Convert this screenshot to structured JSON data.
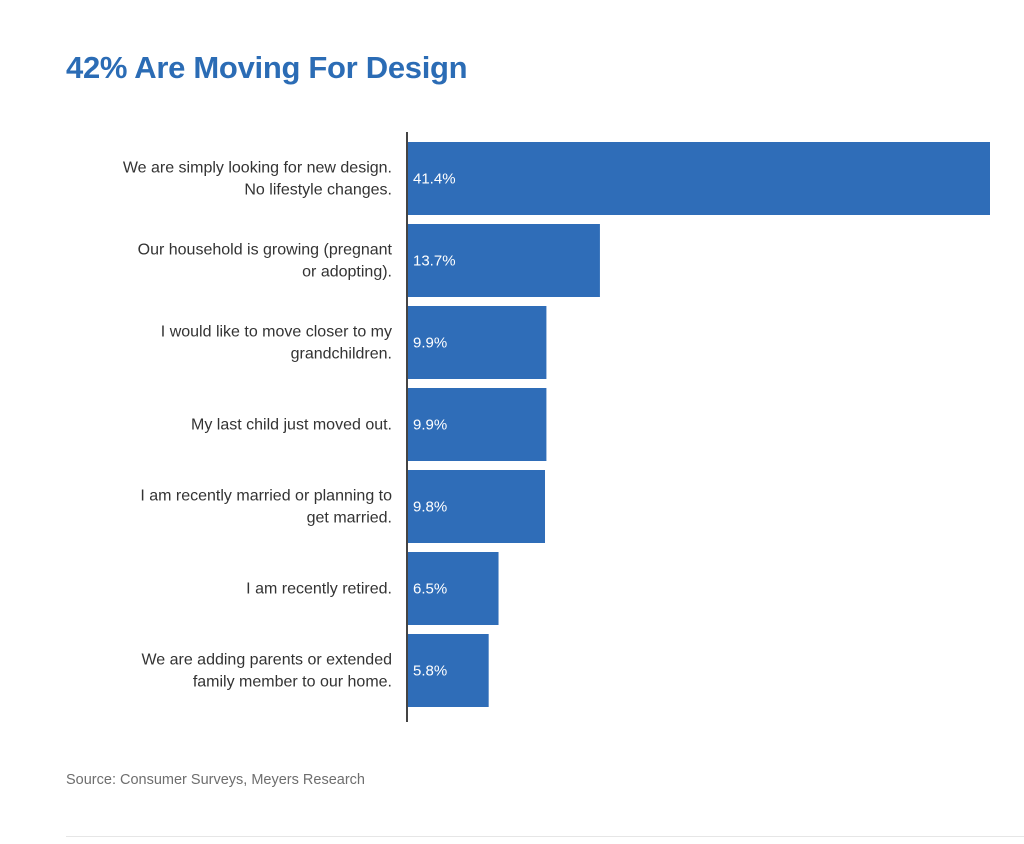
{
  "title": "42% Are Moving For Design",
  "source": "Source: Consumer Surveys, Meyers Research",
  "colors": {
    "title": "#2b6cb5",
    "bar": "#2f6db8",
    "axis": "#444444",
    "label": "#333333",
    "source": "#6e6e6e"
  },
  "chart_data": {
    "type": "bar",
    "orientation": "horizontal",
    "title": "42% Are Moving For Design",
    "xlabel": "",
    "ylabel": "",
    "grid": false,
    "legend": "none",
    "xlim": [
      0,
      41.4
    ],
    "categories": [
      [
        "We are simply looking for new design.",
        "No lifestyle changes."
      ],
      [
        "Our household is growing (pregnant",
        "or adopting)."
      ],
      [
        "I would like to move closer to my",
        "grandchildren."
      ],
      [
        "My last child just moved out."
      ],
      [
        "I am recently married or planning to",
        "get married."
      ],
      [
        "I am recently retired."
      ],
      [
        "We are adding parents or extended",
        "family member to our home."
      ]
    ],
    "values": [
      41.4,
      13.7,
      9.9,
      9.9,
      9.8,
      6.5,
      5.8
    ],
    "value_labels": [
      "41.4%",
      "13.7%",
      "9.9%",
      "9.9%",
      "9.8%",
      "6.5%",
      "5.8%"
    ]
  }
}
